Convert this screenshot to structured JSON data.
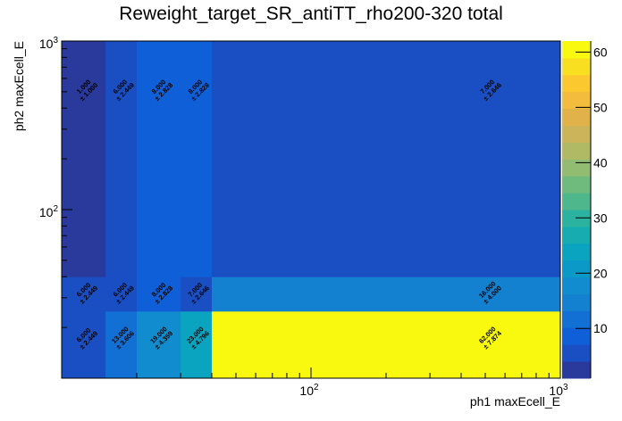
{
  "chart_data": {
    "type": "heatmap",
    "title": "Reweight_target_SR_antiTT_rho200-320 total",
    "xlabel": "ph1 maxEcell_E",
    "ylabel": "ph2 maxEcell_E",
    "x_scale": "log",
    "y_scale": "log",
    "xlim": [
      10,
      1000
    ],
    "ylim": [
      10,
      1000
    ],
    "x_bin_edges": [
      10,
      15,
      20,
      30,
      40,
      1000
    ],
    "y_bin_edges": [
      10,
      25,
      40,
      1000
    ],
    "x_tick_labels": [
      {
        "base": "10",
        "exp": "2",
        "value": 100
      },
      {
        "base": "10",
        "exp": "3",
        "value": 1000
      }
    ],
    "y_tick_labels": [
      {
        "base": "10",
        "exp": "2",
        "value": 100
      },
      {
        "base": "10",
        "exp": "3",
        "value": 1000
      }
    ],
    "values": [
      [
        6,
        13,
        19,
        23,
        62
      ],
      [
        6,
        6,
        8,
        7,
        16
      ],
      [
        1,
        6,
        8,
        8,
        7
      ]
    ],
    "errors": [
      [
        2.449,
        3.606,
        4.359,
        4.796,
        7.874
      ],
      [
        2.449,
        2.449,
        2.828,
        2.646,
        4.0
      ],
      [
        1.0,
        2.449,
        2.828,
        2.828,
        2.646
      ]
    ],
    "zlim": [
      1,
      62
    ],
    "colorbar_ticks": [
      10,
      20,
      30,
      40,
      50,
      60
    ],
    "palette": [
      "#2a3a9c",
      "#1a4fc4",
      "#0f5fd8",
      "#1270d4",
      "#1480d0",
      "#118ccf",
      "#0b9ac8",
      "#0aa4c0",
      "#17adb0",
      "#2bb3a0",
      "#4fb78c",
      "#6fbb7e",
      "#92bc72",
      "#b0ba64",
      "#cbb45a",
      "#e1b24a",
      "#f3bc3c",
      "#fbc830",
      "#f8e020",
      "#f9f80f"
    ],
    "legend": "colorbar-right",
    "grid": false
  }
}
